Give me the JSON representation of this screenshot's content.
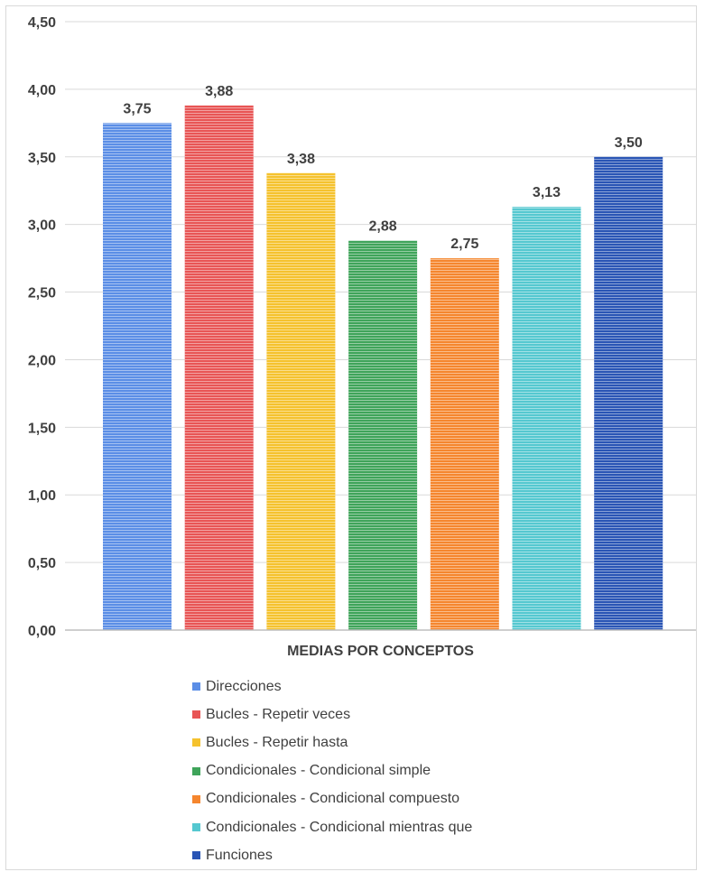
{
  "chart_data": {
    "type": "bar",
    "categories": [
      "MEDIAS POR CONCEPTOS"
    ],
    "xlabel": "MEDIAS POR CONCEPTOS",
    "ylabel": "",
    "ylim": [
      0,
      4.5
    ],
    "yticks": [
      "0,00",
      "0,50",
      "1,00",
      "1,50",
      "2,00",
      "2,50",
      "3,00",
      "3,50",
      "4,00",
      "4,50"
    ],
    "grid": true,
    "legend_position": "bottom",
    "series": [
      {
        "name": "Direcciones",
        "values": [
          3.75
        ],
        "label": "3,75",
        "color": "#5b8ee6"
      },
      {
        "name": "Bucles - Repetir veces",
        "values": [
          3.88
        ],
        "label": "3,88",
        "color": "#e85555"
      },
      {
        "name": "Bucles - Repetir hasta",
        "values": [
          3.38
        ],
        "label": "3,38",
        "color": "#f5c22e"
      },
      {
        "name": "Condicionales - Condicional simple",
        "values": [
          2.88
        ],
        "label": "2,88",
        "color": "#3fa45a"
      },
      {
        "name": "Condicionales - Condicional compuesto",
        "values": [
          2.75
        ],
        "label": "2,75",
        "color": "#f5862e"
      },
      {
        "name": "Condicionales - Condicional mientras que",
        "values": [
          3.13
        ],
        "label": "3,13",
        "color": "#55c8d0"
      },
      {
        "name": "Funciones",
        "values": [
          3.5
        ],
        "label": "3,50",
        "color": "#2a55b5"
      }
    ]
  }
}
